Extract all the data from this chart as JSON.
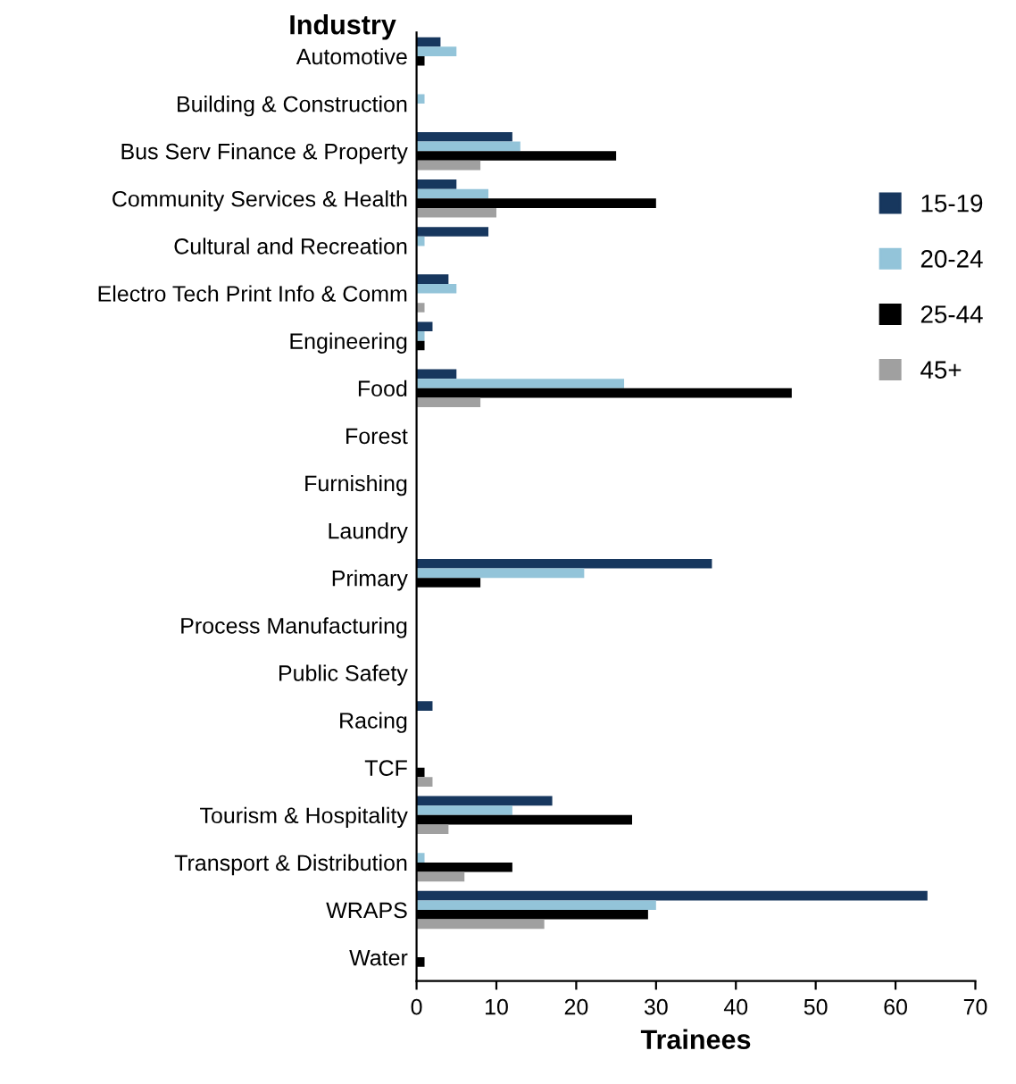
{
  "chart_data": {
    "type": "bar",
    "orientation": "horizontal",
    "ylabel": "Industry",
    "xlabel": "Trainees",
    "categories": [
      "Automotive",
      "Building & Construction",
      "Bus Serv Finance & Property",
      "Community Services & Health",
      "Cultural and Recreation",
      "Electro Tech Print Info & Comm",
      "Engineering",
      "Food",
      "Forest",
      "Furnishing",
      "Laundry",
      "Primary",
      "Process Manufacturing",
      "Public Safety",
      "Racing",
      "TCF",
      "Tourism & Hospitality",
      "Transport & Distribution",
      "WRAPS",
      "Water"
    ],
    "series": [
      {
        "name": "15-19",
        "color": "#17375e",
        "values": [
          3,
          0,
          12,
          5,
          9,
          4,
          2,
          5,
          0,
          0,
          0,
          37,
          0,
          0,
          2,
          0,
          17,
          0,
          64,
          0
        ]
      },
      {
        "name": "20-24",
        "color": "#93c4d9",
        "values": [
          5,
          1,
          13,
          9,
          1,
          5,
          1,
          26,
          0,
          0,
          0,
          21,
          0,
          0,
          0,
          0,
          12,
          1,
          30,
          0
        ]
      },
      {
        "name": "25-44",
        "color": "#000000",
        "values": [
          1,
          0,
          25,
          30,
          0,
          0,
          1,
          47,
          0,
          0,
          0,
          8,
          0,
          0,
          0,
          1,
          27,
          12,
          29,
          1
        ]
      },
      {
        "name": "45+",
        "color": "#a0a0a0",
        "values": [
          0,
          0,
          8,
          10,
          0,
          1,
          0,
          8,
          0,
          0,
          0,
          0,
          0,
          0,
          0,
          2,
          4,
          6,
          16,
          0
        ]
      }
    ],
    "xlim": [
      0,
      70
    ],
    "xticks": [
      0,
      10,
      20,
      30,
      40,
      50,
      60,
      70
    ],
    "grid": false,
    "legend": "right"
  }
}
